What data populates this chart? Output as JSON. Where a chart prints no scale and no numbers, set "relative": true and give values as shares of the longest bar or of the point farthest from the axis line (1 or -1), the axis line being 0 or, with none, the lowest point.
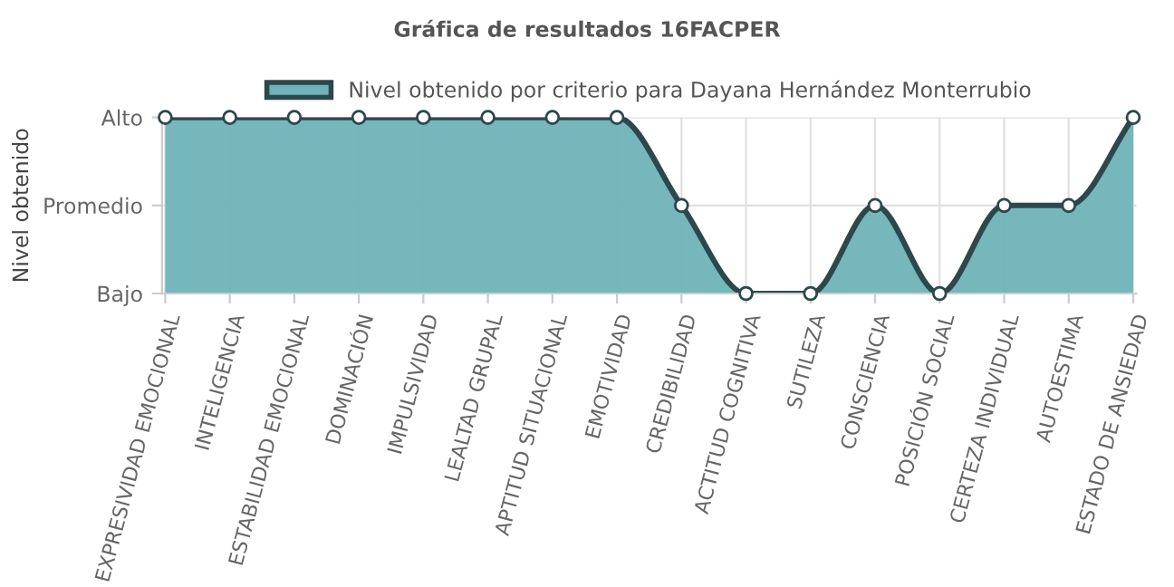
{
  "chart_data": {
    "type": "area",
    "title": "Gráfica de resultados 16FACPER",
    "ylabel": "Nivel obtenido",
    "categories": [
      "EXPRESIVIDAD EMOCIONAL",
      "INTELIGENCIA",
      "ESTABILIDAD EMOCIONAL",
      "DOMINACIÓN",
      "IMPULSIVIDAD",
      "LEALTAD GRUPAL",
      "APTITUD SITUACIONAL",
      "EMOTIVIDAD",
      "CREDIBILIDAD",
      "ACTITUD COGNITIVA",
      "SUTILEZA",
      "CONSCIENCIA",
      "POSICIÓN SOCIAL",
      "CERTEZA INDIVIDUAL",
      "AUTOESTIMA",
      "ESTADO DE ANSIEDAD"
    ],
    "series": [
      {
        "name": "Nivel obtenido por criterio para Dayana Hernández Monterrubio",
        "color": "#6fb3b8",
        "values": [
          1,
          1,
          1,
          1,
          1,
          1,
          1,
          1,
          0.5,
          0,
          0,
          0.5,
          0,
          0.5,
          0.5,
          1
        ]
      }
    ],
    "relative": true,
    "y_categories": [
      "Alto",
      "Promedio",
      "Bajo"
    ],
    "grid": true,
    "legend": "top",
    "marker": "circle",
    "line_style": "solid"
  }
}
